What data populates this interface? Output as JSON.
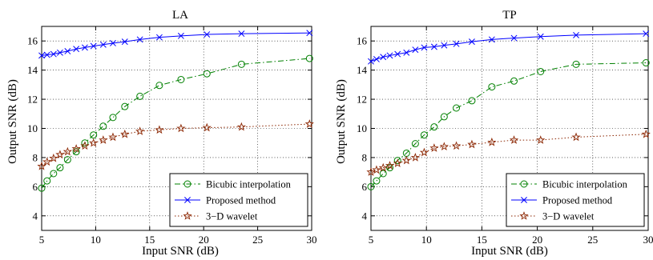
{
  "chart_data": [
    {
      "type": "line",
      "title": "LA",
      "xlabel": "Input SNR (dB)",
      "ylabel": "Output SNR (dB)",
      "xlim": [
        5,
        30
      ],
      "ylim": [
        3,
        17
      ],
      "xticks": [
        5,
        10,
        15,
        20,
        25,
        30
      ],
      "yticks": [
        4,
        6,
        8,
        10,
        12,
        14,
        16
      ],
      "grid": true,
      "legend_position": "bottom-right",
      "series": [
        {
          "name": "Bicubic interpolation",
          "color": "#008000",
          "linestyle": "dashdot",
          "marker": "circle",
          "x": [
            5,
            5.5,
            6.1,
            6.7,
            7.4,
            8.2,
            9,
            9.8,
            10.7,
            11.6,
            12.7,
            14.1,
            15.9,
            17.9,
            20.3,
            23.5,
            29.8
          ],
          "y": [
            5.9,
            6.4,
            6.9,
            7.3,
            7.85,
            8.4,
            9.0,
            9.55,
            10.15,
            10.75,
            11.5,
            12.2,
            12.95,
            13.35,
            13.75,
            14.4,
            14.8
          ]
        },
        {
          "name": "Proposed method",
          "color": "#0000ff",
          "linestyle": "solid",
          "marker": "x",
          "x": [
            5,
            5.5,
            6.1,
            6.7,
            7.4,
            8.2,
            9,
            9.8,
            10.7,
            11.6,
            12.7,
            14.1,
            15.9,
            17.9,
            20.3,
            23.5,
            29.8
          ],
          "y": [
            15.0,
            15.05,
            15.1,
            15.2,
            15.3,
            15.45,
            15.55,
            15.65,
            15.75,
            15.85,
            15.95,
            16.1,
            16.25,
            16.35,
            16.45,
            16.5,
            16.55
          ]
        },
        {
          "name": "3−D wavelet",
          "color": "#8b2500",
          "linestyle": "dotted",
          "marker": "star",
          "x": [
            5,
            5.5,
            6.1,
            6.7,
            7.4,
            8.2,
            9,
            9.8,
            10.7,
            11.6,
            12.7,
            14.1,
            15.9,
            17.9,
            20.3,
            23.5,
            29.8
          ],
          "y": [
            7.4,
            7.7,
            7.95,
            8.2,
            8.4,
            8.6,
            8.8,
            9.0,
            9.2,
            9.4,
            9.6,
            9.8,
            9.9,
            10.0,
            10.05,
            10.1,
            10.3
          ]
        }
      ]
    },
    {
      "type": "line",
      "title": "TP",
      "xlabel": "Input SNR (dB)",
      "ylabel": "Output SNR (dB)",
      "xlim": [
        5,
        30
      ],
      "ylim": [
        3,
        17
      ],
      "xticks": [
        5,
        10,
        15,
        20,
        25,
        30
      ],
      "yticks": [
        4,
        6,
        8,
        10,
        12,
        14,
        16
      ],
      "grid": true,
      "legend_position": "bottom-right",
      "series": [
        {
          "name": "Bicubic interpolation",
          "color": "#008000",
          "linestyle": "dashdot",
          "marker": "circle",
          "x": [
            5,
            5.5,
            6.1,
            6.7,
            7.4,
            8.2,
            9,
            9.8,
            10.7,
            11.6,
            12.7,
            14.1,
            15.9,
            17.9,
            20.3,
            23.5,
            29.8
          ],
          "y": [
            6.0,
            6.4,
            6.9,
            7.3,
            7.8,
            8.3,
            8.95,
            9.55,
            10.1,
            10.8,
            11.4,
            11.9,
            12.85,
            13.25,
            13.9,
            14.4,
            14.5
          ]
        },
        {
          "name": "Proposed method",
          "color": "#0000ff",
          "linestyle": "solid",
          "marker": "x",
          "x": [
            5,
            5.5,
            6.1,
            6.7,
            7.4,
            8.2,
            9,
            9.8,
            10.7,
            11.6,
            12.7,
            14.1,
            15.9,
            17.9,
            20.3,
            23.5,
            29.8
          ],
          "y": [
            14.6,
            14.75,
            14.9,
            15.0,
            15.1,
            15.2,
            15.4,
            15.55,
            15.6,
            15.7,
            15.8,
            15.95,
            16.1,
            16.2,
            16.3,
            16.4,
            16.5
          ]
        },
        {
          "name": "3−D wavelet",
          "color": "#8b2500",
          "linestyle": "dotted",
          "marker": "star",
          "x": [
            5,
            5.5,
            6.1,
            6.7,
            7.4,
            8.2,
            9,
            9.8,
            10.7,
            11.6,
            12.7,
            14.1,
            15.9,
            17.9,
            20.3,
            23.5,
            29.8
          ],
          "y": [
            7.0,
            7.15,
            7.3,
            7.45,
            7.6,
            7.8,
            8.0,
            8.35,
            8.65,
            8.75,
            8.8,
            8.9,
            9.05,
            9.2,
            9.2,
            9.4,
            9.6
          ]
        }
      ]
    }
  ]
}
